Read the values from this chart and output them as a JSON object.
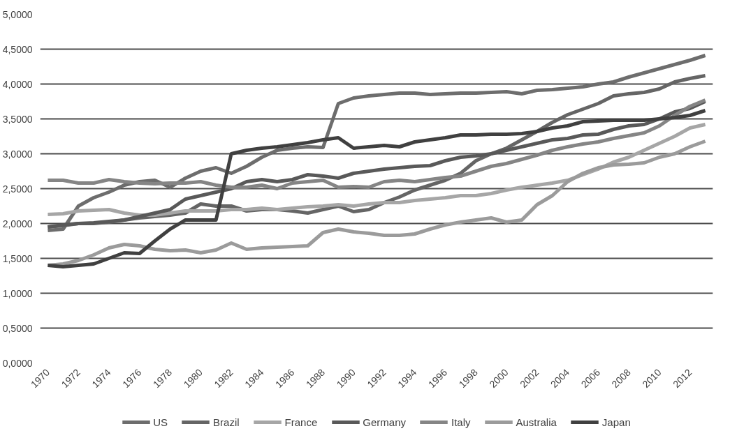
{
  "chart_data": {
    "type": "line",
    "categories": [
      "1970",
      null,
      "1972",
      null,
      "1974",
      null,
      "1976",
      null,
      "1978",
      null,
      "1980",
      null,
      "1982",
      null,
      "1984",
      null,
      "1986",
      null,
      "1988",
      null,
      "1990",
      null,
      "1992",
      null,
      "1994",
      null,
      "1996",
      null,
      "1998",
      null,
      "2000",
      null,
      "2002",
      null,
      "2004",
      null,
      "2006",
      null,
      "2008",
      null,
      "2010",
      null,
      "2012",
      null
    ],
    "ylim": [
      0,
      5
    ],
    "yticks": [
      {
        "value": 0,
        "label": "0,0000"
      },
      {
        "value": 0.5,
        "label": "0,5000"
      },
      {
        "value": 1,
        "label": "1,0000"
      },
      {
        "value": 1.5,
        "label": "1,5000"
      },
      {
        "value": 2,
        "label": "2,0000"
      },
      {
        "value": 2.5,
        "label": "2,5000"
      },
      {
        "value": 3,
        "label": "3,0000"
      },
      {
        "value": 3.5,
        "label": "3,5000"
      },
      {
        "value": 4,
        "label": "4,0000"
      },
      {
        "value": 4.5,
        "label": "4,5000"
      },
      {
        "value": 5,
        "label": "5,0000"
      }
    ],
    "grid": "y",
    "legend": "bottom",
    "marker": "none",
    "line_style": "solid",
    "series": [
      {
        "name": "US",
        "color": "#6d6d6d",
        "values": [
          1.9,
          1.92,
          2.25,
          2.37,
          2.45,
          2.55,
          2.6,
          2.62,
          2.52,
          2.65,
          2.75,
          2.8,
          2.72,
          2.82,
          2.95,
          3.05,
          3.08,
          3.1,
          3.09,
          3.72,
          3.8,
          3.83,
          3.85,
          3.87,
          3.87,
          3.85,
          3.86,
          3.87,
          3.87,
          3.88,
          3.89,
          3.86,
          3.91,
          3.92,
          3.94,
          3.96,
          4.0,
          4.03,
          4.1,
          4.16,
          4.22,
          4.28,
          4.34,
          4.41
        ]
      },
      {
        "name": "Brazil",
        "color": "#656565",
        "values": [
          1.95,
          1.97,
          2.0,
          2.0,
          2.02,
          2.05,
          2.08,
          2.1,
          2.12,
          2.15,
          2.28,
          2.25,
          2.25,
          2.18,
          2.2,
          2.2,
          2.18,
          2.15,
          2.2,
          2.25,
          2.17,
          2.2,
          2.3,
          2.38,
          2.48,
          2.55,
          2.62,
          2.72,
          2.9,
          3.0,
          3.08,
          3.2,
          3.32,
          3.45,
          3.56,
          3.64,
          3.72,
          3.83,
          3.86,
          3.88,
          3.93,
          4.03,
          4.08,
          4.12
        ]
      },
      {
        "name": "France",
        "color": "#a6a6a6",
        "values": [
          2.13,
          2.14,
          2.18,
          2.19,
          2.2,
          2.15,
          2.12,
          2.12,
          2.15,
          2.18,
          2.18,
          2.18,
          2.2,
          2.2,
          2.22,
          2.2,
          2.22,
          2.24,
          2.25,
          2.27,
          2.25,
          2.28,
          2.3,
          2.3,
          2.33,
          2.35,
          2.37,
          2.4,
          2.4,
          2.43,
          2.48,
          2.52,
          2.55,
          2.58,
          2.62,
          2.7,
          2.78,
          2.88,
          2.95,
          3.05,
          3.15,
          3.25,
          3.37,
          3.42
        ]
      },
      {
        "name": "Germany",
        "color": "#595959",
        "values": [
          1.95,
          1.98,
          2.0,
          2.01,
          2.03,
          2.05,
          2.1,
          2.15,
          2.2,
          2.35,
          2.4,
          2.45,
          2.5,
          2.6,
          2.63,
          2.6,
          2.63,
          2.7,
          2.68,
          2.65,
          2.72,
          2.75,
          2.78,
          2.8,
          2.82,
          2.83,
          2.9,
          2.95,
          2.97,
          3.0,
          3.05,
          3.1,
          3.15,
          3.2,
          3.22,
          3.27,
          3.28,
          3.35,
          3.4,
          3.42,
          3.5,
          3.6,
          3.65,
          3.75
        ]
      },
      {
        "name": "Italy",
        "color": "#858585",
        "values": [
          2.62,
          2.62,
          2.58,
          2.58,
          2.63,
          2.6,
          2.58,
          2.57,
          2.58,
          2.58,
          2.6,
          2.55,
          2.52,
          2.52,
          2.55,
          2.5,
          2.58,
          2.6,
          2.62,
          2.52,
          2.53,
          2.52,
          2.6,
          2.62,
          2.6,
          2.63,
          2.66,
          2.68,
          2.75,
          2.82,
          2.86,
          2.92,
          2.98,
          3.05,
          3.1,
          3.14,
          3.17,
          3.22,
          3.26,
          3.3,
          3.4,
          3.55,
          3.68,
          3.77
        ]
      },
      {
        "name": "Australia",
        "color": "#9b9b9b",
        "values": [
          1.4,
          1.42,
          1.47,
          1.55,
          1.65,
          1.7,
          1.68,
          1.63,
          1.61,
          1.62,
          1.58,
          1.62,
          1.72,
          1.63,
          1.65,
          1.66,
          1.67,
          1.68,
          1.87,
          1.92,
          1.88,
          1.86,
          1.83,
          1.83,
          1.85,
          1.92,
          1.98,
          2.02,
          2.05,
          2.08,
          2.02,
          2.05,
          2.27,
          2.4,
          2.6,
          2.72,
          2.8,
          2.84,
          2.85,
          2.87,
          2.95,
          3.0,
          3.1,
          3.18
        ]
      },
      {
        "name": "Japan",
        "color": "#404040",
        "values": [
          1.4,
          1.38,
          1.4,
          1.42,
          1.5,
          1.58,
          1.57,
          1.75,
          1.92,
          2.05,
          2.05,
          2.05,
          3.0,
          3.05,
          3.08,
          3.1,
          3.13,
          3.16,
          3.2,
          3.23,
          3.08,
          3.1,
          3.12,
          3.1,
          3.17,
          3.2,
          3.23,
          3.27,
          3.27,
          3.28,
          3.28,
          3.29,
          3.32,
          3.37,
          3.4,
          3.46,
          3.47,
          3.48,
          3.48,
          3.48,
          3.5,
          3.52,
          3.55,
          3.62
        ]
      }
    ]
  }
}
